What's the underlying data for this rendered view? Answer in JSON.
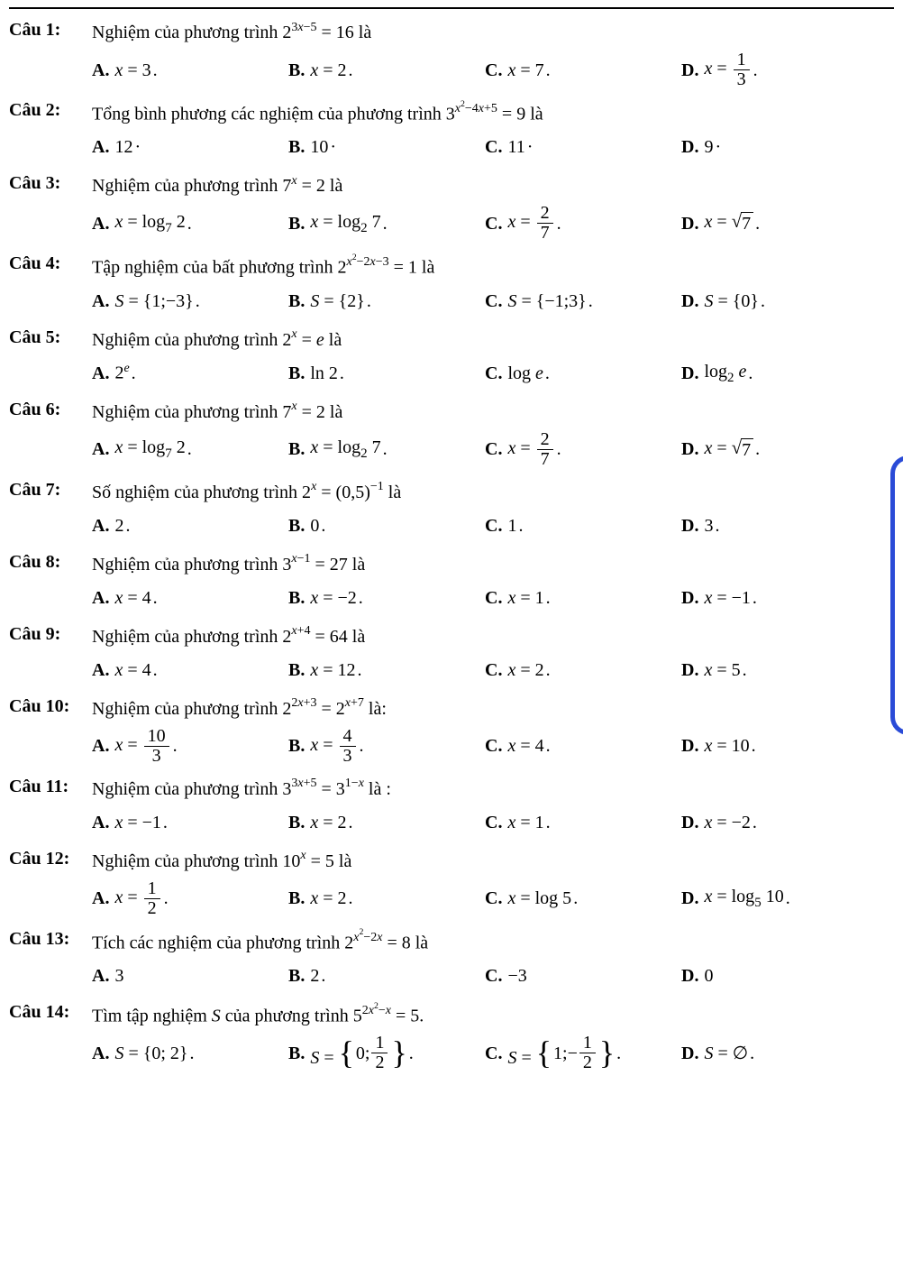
{
  "questions": [
    {
      "label": "Câu 1:",
      "stem_pre": "Nghiệm của phương trình ",
      "stem_expr": "2<sup>3<i>x</i>−5</sup> = 16",
      "stem_post": " là",
      "options": [
        {
          "l": "A.",
          "m": "<i>x</i> = 3",
          "dot": "."
        },
        {
          "l": "B.",
          "m": "<i>x</i> = 2",
          "dot": "."
        },
        {
          "l": "C.",
          "m": "<i>x</i> = 7",
          "dot": "."
        },
        {
          "l": "D.",
          "m": "<i>x</i> = <span class=\"frac\"><span class=\"num\">1</span><span class=\"den\">3</span></span>",
          "dot": "."
        }
      ]
    },
    {
      "label": "Câu 2:",
      "stem_pre": "Tổng bình phương các nghiệm của phương trình ",
      "stem_expr": "3<sup><i>x</i><sup>2</sup>−4<i>x</i>+5</sup> = 9",
      "stem_post": " là",
      "options": [
        {
          "l": "A.",
          "m": "12",
          "dot": "·"
        },
        {
          "l": "B.",
          "m": "10",
          "dot": "·"
        },
        {
          "l": "C.",
          "m": "11",
          "dot": "·"
        },
        {
          "l": "D.",
          "m": "9",
          "dot": "·"
        }
      ]
    },
    {
      "label": "Câu 3:",
      "stem_pre": "Nghiệm của phương trình ",
      "stem_expr": "7<sup><i>x</i></sup> = 2",
      "stem_post": " là",
      "options": [
        {
          "l": "A.",
          "m": "<i>x</i> = log<sub>7</sub> 2",
          "dot": "."
        },
        {
          "l": "B.",
          "m": "<i>x</i> = log<sub>2</sub> 7",
          "dot": "."
        },
        {
          "l": "C.",
          "m": "<i>x</i> = <span class=\"frac\"><span class=\"num\">2</span><span class=\"den\">7</span></span>",
          "dot": "."
        },
        {
          "l": "D.",
          "m": "<i>x</i> = <span class=\"sqrt\"><span class=\"rad\">√</span><span class=\"arg\">7</span></span>",
          "dot": "."
        }
      ]
    },
    {
      "label": "Câu 4:",
      "stem_pre": "Tập nghiệm của bất phương trình ",
      "stem_expr": "2<sup><i>x</i><sup>2</sup>−2<i>x</i>−3</sup> = 1",
      "stem_post": " là",
      "options": [
        {
          "l": "A.",
          "m": "<i>S</i> = <span class=\"set\">{1;−3}</span>",
          "dot": "."
        },
        {
          "l": "B.",
          "m": "<i>S</i> = <span class=\"set\">{2}</span>",
          "dot": "."
        },
        {
          "l": "C.",
          "m": "<i>S</i> = <span class=\"set\">{−1;3}</span>",
          "dot": "."
        },
        {
          "l": "D.",
          "m": "<i>S</i> = <span class=\"set\">{0}</span>",
          "dot": "."
        }
      ]
    },
    {
      "label": "Câu 5:",
      "stem_pre": "Nghiệm của phương trình ",
      "stem_expr": "2<sup><i>x</i></sup> = <i>e</i>",
      "stem_post": " là",
      "options": [
        {
          "l": "A.",
          "m": "2<sup><i>e</i></sup>",
          "dot": "."
        },
        {
          "l": "B.",
          "m": "ln 2",
          "dot": "."
        },
        {
          "l": "C.",
          "m": "log <i>e</i>",
          "dot": "."
        },
        {
          "l": "D.",
          "m": "log<sub>2</sub> <i>e</i>",
          "dot": "."
        }
      ]
    },
    {
      "label": "Câu 6:",
      "stem_pre": "Nghiệm của phương trình ",
      "stem_expr": "7<sup><i>x</i></sup> = 2",
      "stem_post": " là",
      "options": [
        {
          "l": "A.",
          "m": "<i>x</i> = log<sub>7</sub> 2",
          "dot": "."
        },
        {
          "l": "B.",
          "m": "<i>x</i> = log<sub>2</sub> 7",
          "dot": "."
        },
        {
          "l": "C.",
          "m": "<i>x</i> = <span class=\"frac\"><span class=\"num\">2</span><span class=\"den\">7</span></span>",
          "dot": "."
        },
        {
          "l": "D.",
          "m": "<i>x</i> = <span class=\"sqrt\"><span class=\"rad\">√</span><span class=\"arg\">7</span></span>",
          "dot": "."
        }
      ]
    },
    {
      "label": "Câu 7:",
      "stem_pre": "Số nghiệm của phương trình ",
      "stem_expr": "2<sup><i>x</i></sup> = (0,5)<sup>−1</sup>",
      "stem_post": " là",
      "options": [
        {
          "l": "A.",
          "m": "2",
          "dot": "."
        },
        {
          "l": "B.",
          "m": "0",
          "dot": "."
        },
        {
          "l": "C.",
          "m": "1",
          "dot": "."
        },
        {
          "l": "D.",
          "m": "3",
          "dot": "."
        }
      ]
    },
    {
      "label": "Câu 8:",
      "stem_pre": "Nghiệm của phương trình ",
      "stem_expr": "3<sup><i>x</i>−1</sup> = 27",
      "stem_post": " là",
      "options": [
        {
          "l": "A.",
          "m": "<i>x</i> = 4",
          "dot": "."
        },
        {
          "l": "B.",
          "m": "<i>x</i> = −2",
          "dot": "."
        },
        {
          "l": "C.",
          "m": "<i>x</i> = 1",
          "dot": "."
        },
        {
          "l": "D.",
          "m": "<i>x</i> = −1",
          "dot": "."
        }
      ]
    },
    {
      "label": "Câu 9:",
      "stem_pre": "Nghiệm của phương trình ",
      "stem_expr": "2<sup><i>x</i>+4</sup> = 64",
      "stem_post": " là",
      "options": [
        {
          "l": "A.",
          "m": "<i>x</i> = 4",
          "dot": "."
        },
        {
          "l": "B.",
          "m": "<i>x</i> = 12",
          "dot": "."
        },
        {
          "l": "C.",
          "m": "<i>x</i> = 2",
          "dot": "."
        },
        {
          "l": "D.",
          "m": "<i>x</i> = 5",
          "dot": "."
        }
      ]
    },
    {
      "label": "Câu 10:",
      "stem_pre": "Nghiệm của phương trình ",
      "stem_expr": "2<sup>2<i>x</i>+3</sup> = 2<sup><i>x</i>+7</sup>",
      "stem_post": " là:",
      "options": [
        {
          "l": "A.",
          "m": "<i>x</i> = <span class=\"frac\"><span class=\"num\">10</span><span class=\"den\">3</span></span>",
          "dot": "."
        },
        {
          "l": "B.",
          "m": "<i>x</i> = <span class=\"frac\"><span class=\"num\">4</span><span class=\"den\">3</span></span>",
          "dot": "."
        },
        {
          "l": "C.",
          "m": "<i>x</i> = 4",
          "dot": "."
        },
        {
          "l": "D.",
          "m": "<i>x</i> = 10",
          "dot": "."
        }
      ]
    },
    {
      "label": "Câu 11:",
      "stem_pre": "Nghiệm của phương trình ",
      "stem_expr": "3<sup>3<i>x</i>+5</sup> = 3<sup>1−<i>x</i></sup>",
      "stem_post": " là :",
      "options": [
        {
          "l": "A.",
          "m": "<i>x</i> = −1",
          "dot": "."
        },
        {
          "l": "B.",
          "m": "<i>x</i> = 2",
          "dot": "."
        },
        {
          "l": "C.",
          "m": "<i>x</i> = 1",
          "dot": "."
        },
        {
          "l": "D.",
          "m": "<i>x</i> = −2",
          "dot": "."
        }
      ]
    },
    {
      "label": "Câu 12:",
      "stem_pre": "Nghiệm của phương trình ",
      "stem_expr": "10<sup><i>x</i></sup> = 5",
      "stem_post": " là",
      "options": [
        {
          "l": "A.",
          "m": "<i>x</i> = <span class=\"frac\"><span class=\"num\">1</span><span class=\"den\">2</span></span>",
          "dot": "."
        },
        {
          "l": "B.",
          "m": "<i>x</i> = 2",
          "dot": "."
        },
        {
          "l": "C.",
          "m": "<i>x</i> = log 5",
          "dot": "."
        },
        {
          "l": "D.",
          "m": "<i>x</i> = log<sub>5</sub> 10",
          "dot": "."
        }
      ]
    },
    {
      "label": "Câu 13:",
      "stem_pre": "Tích các nghiệm của phương trình ",
      "stem_expr": "2<sup><i>x</i><sup>2</sup>−2<i>x</i></sup> = 8",
      "stem_post": " là",
      "options": [
        {
          "l": "A.",
          "m": "3",
          "dot": ""
        },
        {
          "l": "B.",
          "m": "2",
          "dot": "."
        },
        {
          "l": "C.",
          "m": "−3",
          "dot": ""
        },
        {
          "l": "D.",
          "m": "0",
          "dot": ""
        }
      ]
    },
    {
      "label": "Câu 14:",
      "stem_pre": "Tìm tập nghiệm <i>S</i> của phương trình ",
      "stem_expr": "5<sup>2<i>x</i><sup>2</sup>−<i>x</i></sup> = 5",
      "stem_post": ".",
      "options": [
        {
          "l": "A.",
          "m": "<i>S</i> = <span class=\"set\">{0; 2}</span>",
          "dot": "."
        },
        {
          "l": "B.",
          "m": "<i>S</i> = <span class=\"bigbrace\"><span class=\"bl\">{</span><span class=\"inner\">0; <span class=\"frac\"><span class=\"num\">1</span><span class=\"den\">2</span></span></span><span class=\"br\">}</span></span>",
          "dot": "."
        },
        {
          "l": "C.",
          "m": "<i>S</i> = <span class=\"bigbrace\"><span class=\"bl\">{</span><span class=\"inner\">1;− <span class=\"frac\"><span class=\"num\">1</span><span class=\"den\">2</span></span></span><span class=\"br\">}</span></span>",
          "dot": "."
        },
        {
          "l": "D.",
          "m": "<i>S</i> = ∅",
          "dot": "."
        }
      ]
    }
  ],
  "colors": {
    "text": "#000000",
    "bg": "#ffffff",
    "accent": "#2a4bd7"
  }
}
